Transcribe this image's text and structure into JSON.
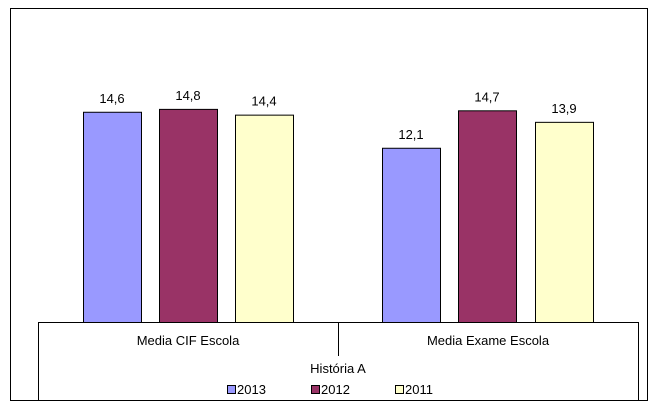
{
  "chart_data": {
    "type": "bar",
    "categories": [
      "Media CIF Escola",
      "Media Exame Escola"
    ],
    "group_label": "História A",
    "series": [
      {
        "name": "2013",
        "values": [
          14.6,
          12.1
        ],
        "labels": [
          "14,6",
          "12,1"
        ],
        "color": "#9999ff"
      },
      {
        "name": "2012",
        "values": [
          14.8,
          14.7
        ],
        "labels": [
          "14,8",
          "14,7"
        ],
        "color": "#993366"
      },
      {
        "name": "2011",
        "values": [
          14.4,
          13.9
        ],
        "labels": [
          "14,4",
          "13,9"
        ],
        "color": "#ffffcc"
      }
    ],
    "ylim": [
      0,
      20
    ],
    "grid": false,
    "legend_position": "bottom"
  }
}
